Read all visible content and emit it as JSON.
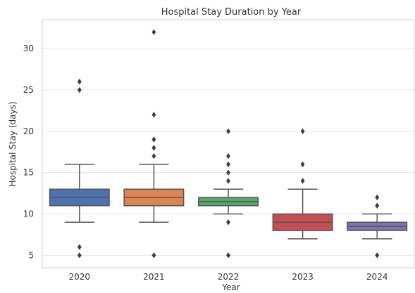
{
  "chart_data": {
    "type": "boxplot",
    "title": "Hospital Stay Duration by Year",
    "xlabel": "Year",
    "ylabel": "Hospital Stay (days)",
    "categories": [
      "2020",
      "2021",
      "2022",
      "2023",
      "2024"
    ],
    "yticks": [
      5,
      10,
      15,
      20,
      25,
      30
    ],
    "ylim": [
      3.5,
      33.5
    ],
    "grid": true,
    "boxes": [
      {
        "category": "2020",
        "q1": 11,
        "median": 12,
        "q3": 13,
        "whisker_low": 9,
        "whisker_high": 16,
        "fliers": [
          5,
          6,
          25,
          26
        ],
        "color": "#4c72b0"
      },
      {
        "category": "2021",
        "q1": 11,
        "median": 12,
        "q3": 13,
        "whisker_low": 9,
        "whisker_high": 16,
        "fliers": [
          5,
          17,
          18,
          19,
          22,
          32
        ],
        "color": "#dd8452"
      },
      {
        "category": "2022",
        "q1": 11,
        "median": 11.5,
        "q3": 12,
        "whisker_low": 10,
        "whisker_high": 13,
        "fliers": [
          5,
          9,
          14,
          15,
          16,
          17,
          20
        ],
        "color": "#55a868"
      },
      {
        "category": "2023",
        "q1": 8,
        "median": 9,
        "q3": 10,
        "whisker_low": 7,
        "whisker_high": 13,
        "fliers": [
          14,
          16,
          20
        ],
        "color": "#c44e52"
      },
      {
        "category": "2024",
        "q1": 8,
        "median": 8.5,
        "q3": 9,
        "whisker_low": 7,
        "whisker_high": 10,
        "fliers": [
          5,
          11,
          12
        ],
        "color": "#8172b3"
      }
    ]
  }
}
